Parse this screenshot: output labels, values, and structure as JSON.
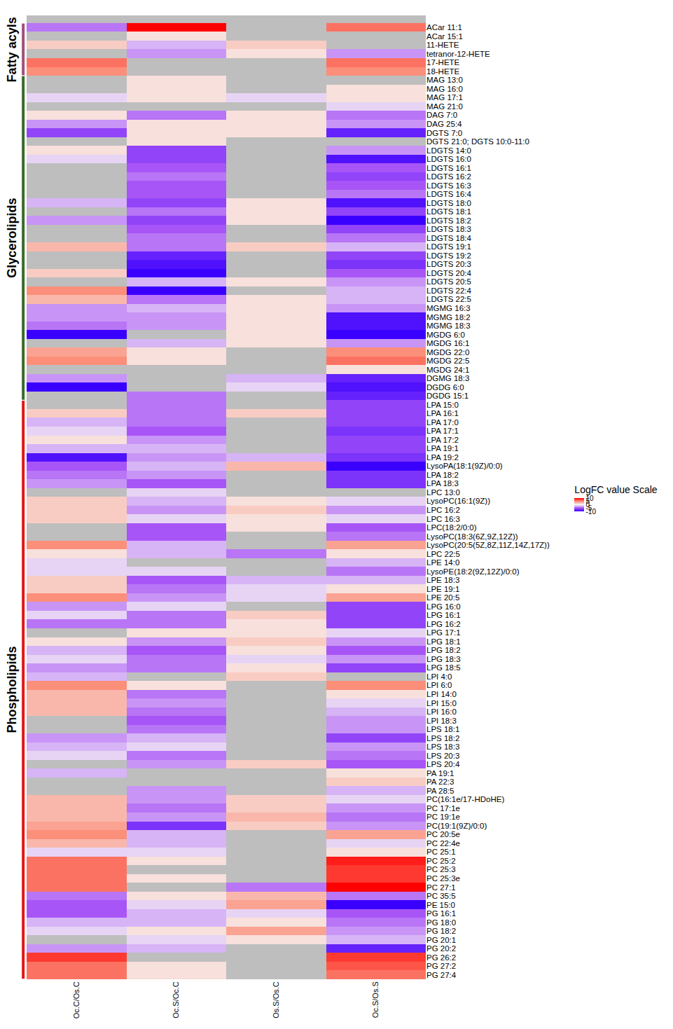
{
  "chart_data": {
    "type": "heatmap",
    "x": [
      "Oc.C/Os.C",
      "Oc.S/Oc.C",
      "Os.S/Os.C",
      "Oc.S/Os.S"
    ],
    "colorbar": {
      "title": "LogFC value Scale",
      "range": [
        -10,
        10
      ],
      "ticks": [
        10,
        5,
        0,
        -5,
        -10
      ]
    },
    "groups": [
      {
        "name": "Fatty acyls",
        "color": "#a0507a",
        "categories": [
          "ACar 11:1",
          "ACar 15:1",
          "11-HETE",
          "tetranor-12-HETE",
          "17-HETE",
          "18-HETE"
        ],
        "z": [
          [
            -4,
            10,
            null,
            6
          ],
          [
            null,
            1,
            null,
            null
          ],
          [
            2,
            -2,
            2,
            null
          ],
          [
            null,
            -3,
            1,
            -3
          ],
          [
            6,
            null,
            null,
            6
          ],
          [
            5,
            null,
            null,
            5
          ]
        ]
      },
      {
        "name": "Glycerolipids",
        "color": "#3a6b2a",
        "categories": [
          "MAG 13:0",
          "MAG 16:0",
          "MAG 17:1",
          "MAG 21:0",
          "DAG 7:0",
          "DAG 25:4",
          "DGTS 7:0",
          "DGTS 21:0; DGTS 10:0-11:0",
          "LDGTS 14:0",
          "LDGTS 16:0",
          "LDGTS 16:1",
          "LDGTS 16:2",
          "LDGTS 16:3",
          "LDGTS 16:4",
          "LDGTS 18:0",
          "LDGTS 18:1",
          "LDGTS 18:2",
          "LDGTS 18:3",
          "LDGTS 18:4",
          "LDGTS 19:1",
          "LDGTS 19:2",
          "LDGTS 20:3",
          "LDGTS 20:4",
          "LDGTS 20:5",
          "LDGTS 22:4",
          "LDGTS 22:5",
          "MGMG 16:3",
          "MGMG 18:2",
          "MGMG 18:3",
          "MGDG 6:0",
          "MGDG 16:1",
          "MGDG 22:0",
          "MGDG 22:5",
          "MGDG 24:1",
          "DGMG 18:3",
          "DGDG 6:0",
          "DGDG 15:1"
        ],
        "z": [
          [
            null,
            1,
            null,
            null
          ],
          [
            null,
            1,
            null,
            1
          ],
          [
            -1,
            1,
            -1,
            1
          ],
          [
            null,
            null,
            null,
            -1
          ],
          [
            1,
            -4,
            1,
            -4
          ],
          [
            -3,
            1,
            1,
            -3
          ],
          [
            -6,
            1,
            1,
            -8
          ],
          [
            null,
            1,
            null,
            null
          ],
          [
            1,
            -6,
            null,
            -3
          ],
          [
            -1,
            -6,
            null,
            -9
          ],
          [
            null,
            -5,
            null,
            -5
          ],
          [
            null,
            -4,
            null,
            -6
          ],
          [
            null,
            -5,
            null,
            -5
          ],
          [
            null,
            -5,
            null,
            -4
          ],
          [
            -2,
            -6,
            1,
            -9
          ],
          [
            null,
            -4,
            1,
            -6
          ],
          [
            -3,
            -6,
            1,
            -10
          ],
          [
            null,
            -5,
            null,
            -6
          ],
          [
            null,
            -4,
            null,
            -4
          ],
          [
            3,
            -4,
            2,
            -2
          ],
          [
            null,
            -8,
            null,
            -6
          ],
          [
            null,
            -9,
            null,
            -7
          ],
          [
            2,
            -10,
            null,
            -5
          ],
          [
            null,
            -2,
            1,
            -3
          ],
          [
            5,
            -10,
            null,
            -2
          ],
          [
            3,
            -4,
            1,
            -2
          ],
          [
            -3,
            -2,
            1,
            -3
          ],
          [
            -3,
            -3,
            1,
            -9
          ],
          [
            -4,
            -3,
            1,
            -9
          ],
          [
            -10,
            null,
            1,
            -10
          ],
          [
            null,
            -2,
            1,
            -3
          ],
          [
            4,
            1,
            null,
            5
          ],
          [
            5,
            1,
            null,
            6
          ],
          [
            null,
            null,
            null,
            1
          ],
          [
            -3,
            null,
            -2,
            -8
          ],
          [
            -10,
            null,
            -1,
            -9
          ],
          [
            null,
            -4,
            null,
            -8
          ]
        ]
      },
      {
        "name": "Phospholipids",
        "color": "#e01818",
        "categories": [
          "LPA 15:0",
          "LPA 16:1",
          "LPA 17:0",
          "LPA 17:1",
          "LPA 17:2",
          "LPA 19:1",
          "LPA 19:2",
          "LysoPA(18:1(9Z)/0:0)",
          "LPA 18:2",
          "LPA 18:3",
          "LPC 13:0",
          "LysoPC(16:1(9Z))",
          "LPC 16:2",
          "LPC 16:3",
          "LPC(18:2/0:0)",
          "LysoPC(18:3(6Z,9Z,12Z))",
          "LysoPC(20:5(5Z,8Z,11Z,14Z,17Z))",
          "LPC 22:5",
          "LPE 14:0",
          "LysoPE(18:2(9Z,12Z)/0:0)",
          "LPE 18:3",
          "LPE 19:1",
          "LPE 20:5",
          "LPG 16:0",
          "LPG 16:1",
          "LPG 16:2",
          "LPG 17:1",
          "LPG 18:1",
          "LPG 18:2",
          "LPG 18:3",
          "LPG 18:5",
          "LPI 4:0",
          "LPI 6:0",
          "LPI 14:0",
          "LPI 15:0",
          "LPI 16:0",
          "LPI 18:3",
          "LPS 18:1",
          "LPS 18:2",
          "LPS 18:3",
          "LPS 20:3",
          "LPS 20:4",
          "PA 19:1",
          "PA 22:3",
          "PA 28:5",
          "PC(16:1e/17-HDoHE)",
          "PC 17:1e",
          "PC 19:1e",
          "PC(19:1(9Z)/0:0)",
          "PC 20:5e",
          "PC 22:4e",
          "PC 25:1",
          "PC 25:2",
          "PC 25:3",
          "PC 25:3e",
          "PC 27:1",
          "PC 35:5",
          "PE 15:0",
          "PG 16:1",
          "PG 18:0",
          "PG 18:2",
          "PG 20:1",
          "PG 20:2",
          "PG 26:2",
          "PG 27:2",
          "PG 27:4"
        ],
        "z": [
          [
            null,
            -4,
            null,
            -6
          ],
          [
            2,
            -4,
            2,
            -6
          ],
          [
            -2,
            -4,
            null,
            -6
          ],
          [
            -1,
            -5,
            null,
            -7
          ],
          [
            1,
            -3,
            null,
            -6
          ],
          [
            -2,
            -2,
            null,
            -6
          ],
          [
            -9,
            -3,
            -2,
            -7
          ],
          [
            -5,
            -2,
            3,
            -10
          ],
          [
            -4,
            -3,
            null,
            -7
          ],
          [
            -3,
            -5,
            null,
            -7
          ],
          [
            null,
            -1,
            null,
            null
          ],
          [
            2,
            -2,
            1,
            -1
          ],
          [
            2,
            -3,
            2,
            -3
          ],
          [
            2,
            -1,
            1,
            -1
          ],
          [
            null,
            -5,
            1,
            -5
          ],
          [
            null,
            -5,
            null,
            -4
          ],
          [
            5,
            -2,
            null,
            4
          ],
          [
            1,
            -2,
            -4,
            1
          ],
          [
            -1,
            null,
            null,
            -2
          ],
          [
            -1,
            -1,
            null,
            -4
          ],
          [
            2,
            -5,
            -2,
            -2
          ],
          [
            2,
            -4,
            -1,
            1
          ],
          [
            5,
            -3,
            -1,
            4
          ],
          [
            -3,
            -1,
            null,
            -6
          ],
          [
            -1,
            -4,
            2,
            -6
          ],
          [
            -4,
            -4,
            1,
            -6
          ],
          [
            null,
            1,
            1,
            -1
          ],
          [
            1,
            -3,
            2,
            -3
          ],
          [
            -2,
            -5,
            1,
            -5
          ],
          [
            -1,
            -4,
            -1,
            -3
          ],
          [
            -3,
            -4,
            1,
            -6
          ],
          [
            -2,
            null,
            2,
            null
          ],
          [
            5,
            1,
            null,
            5
          ],
          [
            3,
            -4,
            null,
            1
          ],
          [
            3,
            -3,
            null,
            -1
          ],
          [
            3,
            -4,
            null,
            -2
          ],
          [
            null,
            -5,
            null,
            -3
          ],
          [
            null,
            -4,
            null,
            -3
          ],
          [
            -3,
            -2,
            null,
            -6
          ],
          [
            -2,
            -1,
            null,
            -3
          ],
          [
            -1,
            -4,
            null,
            -4
          ],
          [
            null,
            -3,
            2,
            -5
          ],
          [
            -2,
            null,
            null,
            1
          ],
          [
            null,
            null,
            null,
            2
          ],
          [
            null,
            -3,
            null,
            -2
          ],
          [
            3,
            -3,
            2,
            -1
          ],
          [
            3,
            -4,
            2,
            -3
          ],
          [
            3,
            -3,
            3,
            -4
          ],
          [
            4,
            -7,
            2,
            -3
          ],
          [
            5,
            -2,
            null,
            4
          ],
          [
            3,
            -2,
            null,
            -1
          ],
          [
            -1,
            -1,
            null,
            1
          ],
          [
            6,
            1,
            null,
            9
          ],
          [
            6,
            null,
            null,
            8
          ],
          [
            6,
            1,
            null,
            8
          ],
          [
            6,
            null,
            -4,
            10
          ],
          [
            -4,
            1,
            3,
            -4
          ],
          [
            -5,
            -1,
            4,
            -10
          ],
          [
            -5,
            -2,
            -1,
            -5
          ],
          [
            -2,
            -2,
            1,
            -4
          ],
          [
            -1,
            1,
            4,
            -3
          ],
          [
            null,
            -1,
            1,
            -2
          ],
          [
            -3,
            -2,
            null,
            -8
          ],
          [
            8,
            null,
            null,
            8
          ],
          [
            6,
            1,
            null,
            7
          ],
          [
            6,
            1,
            null,
            6
          ]
        ]
      }
    ]
  }
}
